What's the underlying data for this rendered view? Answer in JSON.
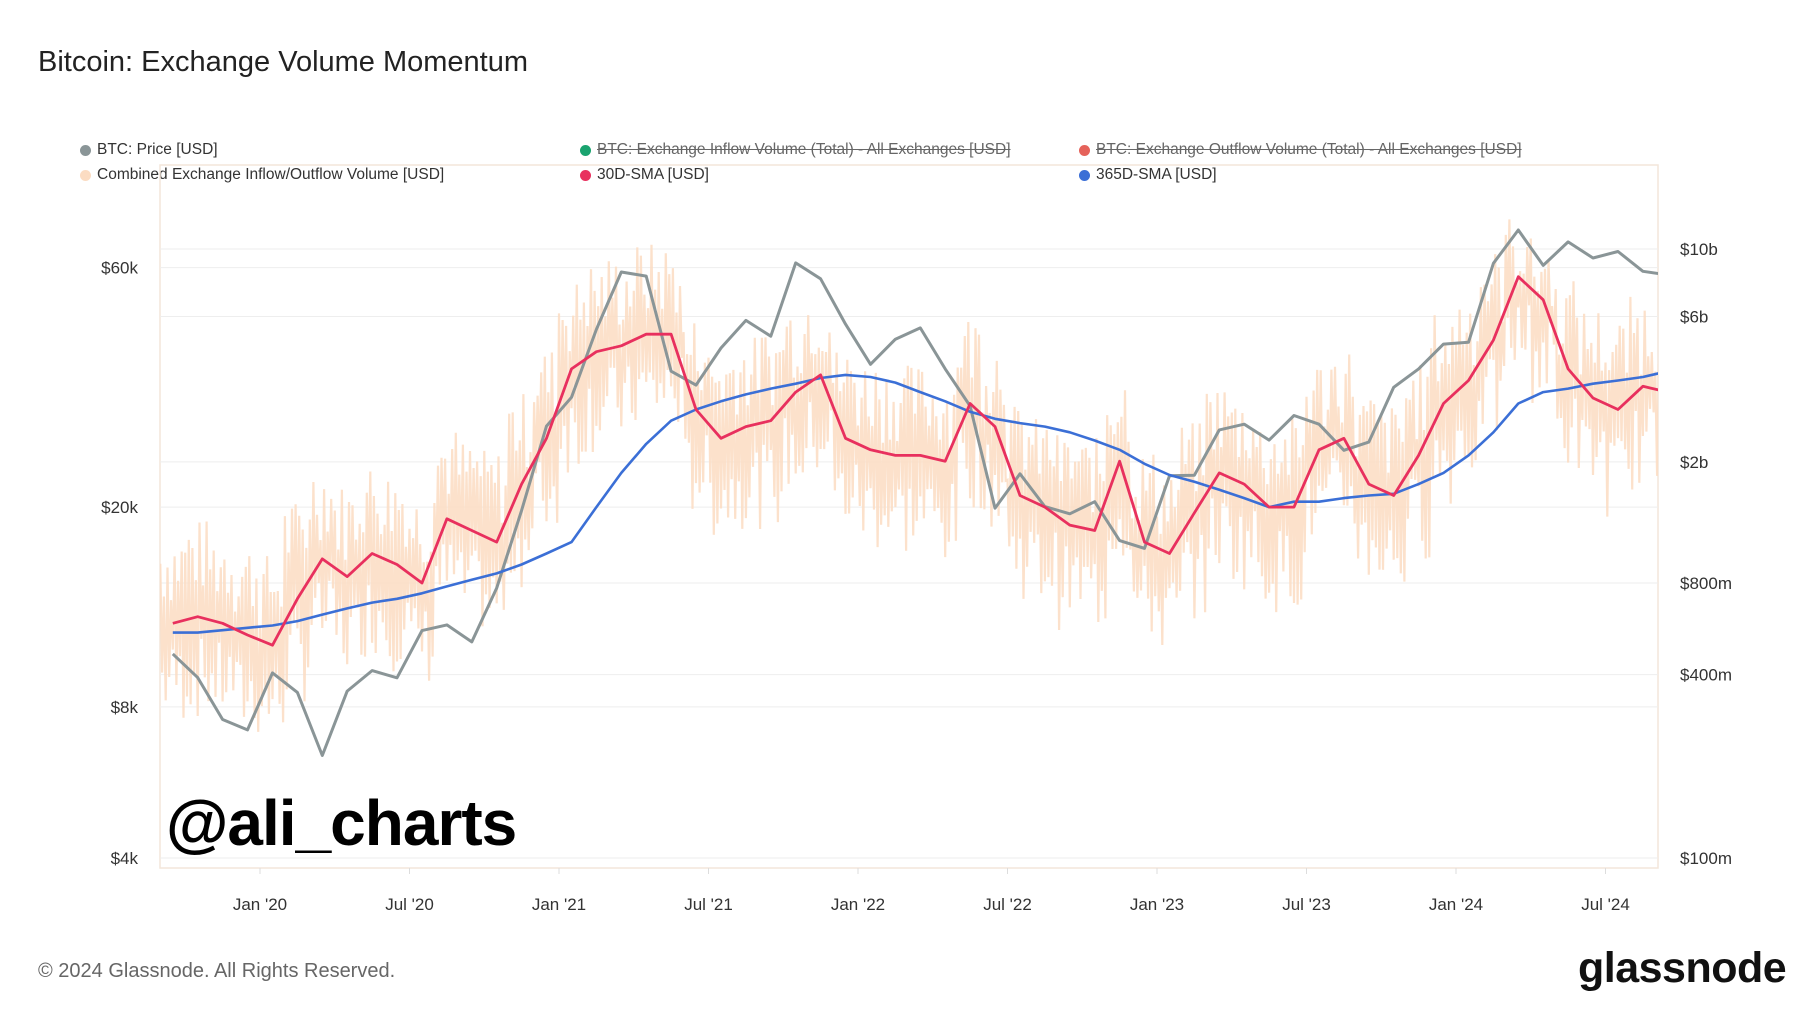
{
  "title": "Bitcoin: Exchange Volume Momentum",
  "footer": "© 2024 Glassnode. All Rights Reserved.",
  "logo_text": "glassnode",
  "watermark": "@ali_charts",
  "legend": [
    {
      "label": "BTC: Price [USD]",
      "color": "#8a9597",
      "enabled": true
    },
    {
      "label": "BTC: Exchange Inflow Volume (Total) - All Exchanges [USD]",
      "color": "#1aa36f",
      "enabled": false
    },
    {
      "label": "BTC: Exchange Outflow Volume (Total) - All Exchanges [USD]",
      "color": "#e5625a",
      "enabled": false
    },
    {
      "label": "Combined Exchange Inflow/Outflow Volume [USD]",
      "color": "#fbdcc2",
      "enabled": true
    },
    {
      "label": "30D-SMA [USD]",
      "color": "#e8305e",
      "enabled": true
    },
    {
      "label": "365D-SMA [USD]",
      "color": "#3b6fd6",
      "enabled": true
    }
  ],
  "chart_data": {
    "type": "line",
    "title": "Bitcoin: Exchange Volume Momentum",
    "x_tick_labels": [
      "Jan '20",
      "Jul '20",
      "Jan '21",
      "Jul '21",
      "Jan '22",
      "Jul '22",
      "Jan '23",
      "Jul '23",
      "Jan '24",
      "Jul '24"
    ],
    "y_left": {
      "scale": "log",
      "tick_labels": [
        "$4k",
        "$8k",
        "$20k",
        "$60k"
      ],
      "ticks": [
        4000,
        8000,
        20000,
        60000
      ]
    },
    "y_right": {
      "scale": "log",
      "tick_labels": [
        "$100m",
        "$400m",
        "$800m",
        "$2b",
        "$6b",
        "$10b"
      ],
      "ticks": [
        0.1,
        0.4,
        0.8,
        2,
        6,
        10
      ],
      "unit": "USD billions"
    },
    "grid": true,
    "legend_position": "top",
    "x": [
      "2019-09",
      "2019-10",
      "2019-11",
      "2019-12",
      "2020-01",
      "2020-02",
      "2020-03",
      "2020-04",
      "2020-05",
      "2020-06",
      "2020-07",
      "2020-08",
      "2020-09",
      "2020-10",
      "2020-11",
      "2020-12",
      "2021-01",
      "2021-02",
      "2021-03",
      "2021-04",
      "2021-05",
      "2021-06",
      "2021-07",
      "2021-08",
      "2021-09",
      "2021-10",
      "2021-11",
      "2021-12",
      "2022-01",
      "2022-02",
      "2022-03",
      "2022-04",
      "2022-05",
      "2022-06",
      "2022-07",
      "2022-08",
      "2022-09",
      "2022-10",
      "2022-11",
      "2022-12",
      "2023-01",
      "2023-02",
      "2023-03",
      "2023-04",
      "2023-05",
      "2023-06",
      "2023-07",
      "2023-08",
      "2023-09",
      "2023-10",
      "2023-11",
      "2023-12",
      "2024-01",
      "2024-02",
      "2024-03",
      "2024-04",
      "2024-05",
      "2024-06",
      "2024-07",
      "2024-08",
      "2024-09"
    ],
    "series": [
      {
        "name": "BTC: Price [USD]",
        "axis": "left",
        "color": "#8a9597",
        "values": [
          10200,
          9150,
          7550,
          7200,
          9350,
          8550,
          6400,
          8600,
          9450,
          9140,
          11350,
          11650,
          10780,
          13800,
          19700,
          29000,
          33100,
          45200,
          58800,
          57700,
          37300,
          35000,
          41500,
          47100,
          43800,
          61300,
          57000,
          46300,
          38500,
          43200,
          45500,
          37700,
          31800,
          19900,
          23300,
          20050,
          19400,
          20500,
          17150,
          16550,
          23100,
          23150,
          28500,
          29250,
          27200,
          30450,
          29250,
          25950,
          26950,
          34650,
          37700,
          42250,
          42600,
          61200,
          71300,
          60600,
          67500,
          62700,
          64600,
          59000,
          58000
        ]
      },
      {
        "name": "Combined Exchange Inflow/Outflow Volume [USD]",
        "axis": "right",
        "color": "#fbdcc2",
        "values_high": [
          1.2,
          1.3,
          1.2,
          1.1,
          1.0,
          1.5,
          2.0,
          1.7,
          2.0,
          1.9,
          1.6,
          2.6,
          2.4,
          2.2,
          3.4,
          4.8,
          8.0,
          9.2,
          9.6,
          10.5,
          10.5,
          6.0,
          4.8,
          5.2,
          5.5,
          6.8,
          7.7,
          4.8,
          4.4,
          4.2,
          4.2,
          4.0,
          6.2,
          5.2,
          3.1,
          2.8,
          2.5,
          2.4,
          4.0,
          2.2,
          2.0,
          2.7,
          3.7,
          3.4,
          2.8,
          2.8,
          4.4,
          4.8,
          3.4,
          3.1,
          4.2,
          6.2,
          7.4,
          10.0,
          13.0,
          11.0,
          8.0,
          6.5,
          6.0,
          7.0,
          6.8
        ],
        "values_low": [
          0.27,
          0.28,
          0.27,
          0.24,
          0.23,
          0.32,
          0.43,
          0.38,
          0.45,
          0.41,
          0.36,
          0.59,
          0.54,
          0.49,
          0.76,
          1.1,
          1.8,
          2.1,
          2.2,
          2.4,
          2.4,
          1.3,
          1.1,
          1.2,
          1.2,
          1.5,
          1.7,
          1.1,
          0.99,
          0.95,
          0.95,
          0.9,
          1.4,
          1.2,
          0.7,
          0.64,
          0.56,
          0.54,
          0.9,
          0.49,
          0.45,
          0.61,
          0.83,
          0.76,
          0.64,
          0.64,
          0.99,
          1.1,
          0.76,
          0.7,
          0.95,
          1.4,
          1.7,
          2.3,
          3.6,
          3.1,
          1.8,
          1.5,
          1.3,
          1.6,
          1.5
        ]
      },
      {
        "name": "30D-SMA [USD]",
        "axis": "right",
        "color": "#e8305e",
        "values": [
          0.59,
          0.62,
          0.59,
          0.54,
          0.5,
          0.71,
          0.96,
          0.84,
          1.0,
          0.92,
          0.8,
          1.3,
          1.19,
          1.09,
          1.69,
          2.39,
          4.04,
          4.6,
          4.81,
          5.25,
          5.25,
          2.97,
          2.39,
          2.61,
          2.73,
          3.39,
          3.86,
          2.39,
          2.19,
          2.1,
          2.1,
          2.01,
          3.11,
          2.61,
          1.55,
          1.42,
          1.24,
          1.19,
          2.01,
          1.09,
          1.0,
          1.36,
          1.84,
          1.69,
          1.42,
          1.42,
          2.19,
          2.39,
          1.69,
          1.55,
          2.1,
          3.11,
          3.7,
          5.02,
          8.11,
          6.81,
          4.04,
          3.24,
          2.97,
          3.54,
          3.39
        ]
      },
      {
        "name": "365D-SMA [USD]",
        "axis": "right",
        "color": "#3b6fd6",
        "values": [
          0.55,
          0.55,
          0.56,
          0.57,
          0.58,
          0.6,
          0.63,
          0.66,
          0.69,
          0.71,
          0.74,
          0.78,
          0.82,
          0.86,
          0.92,
          1.0,
          1.09,
          1.42,
          1.84,
          2.29,
          2.73,
          2.97,
          3.16,
          3.33,
          3.48,
          3.61,
          3.77,
          3.86,
          3.8,
          3.64,
          3.39,
          3.16,
          2.92,
          2.77,
          2.68,
          2.61,
          2.5,
          2.35,
          2.19,
          1.97,
          1.81,
          1.72,
          1.62,
          1.52,
          1.42,
          1.48,
          1.48,
          1.52,
          1.55,
          1.57,
          1.69,
          1.84,
          2.1,
          2.5,
          3.11,
          3.39,
          3.48,
          3.61,
          3.7,
          3.8,
          3.97
        ]
      }
    ]
  }
}
